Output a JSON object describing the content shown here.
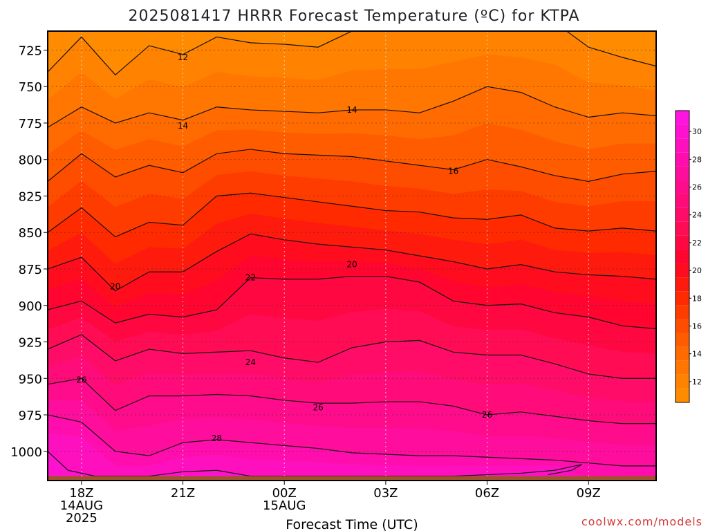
{
  "chart_data": {
    "type": "area",
    "title": "2025081417 HRRR Forecast Temperature (ºC) for KTPA",
    "xlabel": "Forecast Time (UTC)",
    "ylabel": "",
    "credit": "coolwx.com/models",
    "x_ticks": [
      {
        "hour": 1,
        "lines": [
          "18Z",
          "14AUG",
          "2025"
        ]
      },
      {
        "hour": 4,
        "lines": [
          "21Z"
        ]
      },
      {
        "hour": 7,
        "lines": [
          "00Z",
          "15AUG"
        ]
      },
      {
        "hour": 10,
        "lines": [
          "03Z"
        ]
      },
      {
        "hour": 13,
        "lines": [
          "06Z"
        ]
      },
      {
        "hour": 16,
        "lines": [
          "09Z"
        ]
      }
    ],
    "xlim": [
      0,
      18
    ],
    "y_ticks": [
      725,
      750,
      775,
      800,
      825,
      850,
      875,
      900,
      925,
      950,
      975,
      1000
    ],
    "ylim": [
      712,
      1020
    ],
    "ylabel_units": "hPa",
    "y_reversed": true,
    "surface_pressure": 1017,
    "colorbar": {
      "ticks": [
        12,
        14,
        16,
        18,
        20,
        22,
        24,
        26,
        28,
        30
      ],
      "levels": [
        11,
        12,
        13,
        14,
        15,
        16,
        17,
        18,
        19,
        20,
        21,
        22,
        23,
        24,
        25,
        26,
        27,
        28,
        29,
        30,
        31,
        32
      ],
      "colors": [
        "#ff8c00",
        "#ff8200",
        "#ff7700",
        "#ff6b00",
        "#ff5c00",
        "#ff4d00",
        "#ff3c00",
        "#ff2a00",
        "#ff1a0e",
        "#ff0c1e",
        "#ff0530",
        "#ff0842",
        "#ff0c55",
        "#ff0c68",
        "#ff0c7a",
        "#ff0c8c",
        "#ff0d9d",
        "#ff0ead",
        "#ff10be",
        "#ff12cf",
        "#ff14e0"
      ]
    },
    "contour_labels": [
      {
        "level": 12,
        "text": "12",
        "hour": 4.0,
        "p": 730
      },
      {
        "level": 14,
        "text": "14",
        "hour": 4.0,
        "p": 777
      },
      {
        "level": 14,
        "text": "14",
        "hour": 9.0,
        "p": 766
      },
      {
        "level": 16,
        "text": "16",
        "hour": 12.0,
        "p": 808
      },
      {
        "level": 20,
        "text": "20",
        "hour": 2.0,
        "p": 887
      },
      {
        "level": 20,
        "text": "20",
        "hour": 9.0,
        "p": 872
      },
      {
        "level": 22,
        "text": "22",
        "hour": 6.0,
        "p": 881
      },
      {
        "level": 24,
        "text": "24",
        "hour": 6.0,
        "p": 939
      },
      {
        "level": 26,
        "text": "26",
        "hour": 1.0,
        "p": 951
      },
      {
        "level": 26,
        "text": "26",
        "hour": 8.0,
        "p": 970
      },
      {
        "level": 26,
        "text": "26",
        "hour": 13.0,
        "p": 975
      },
      {
        "level": 28,
        "text": "28",
        "hour": 5.0,
        "p": 991
      }
    ],
    "series": [
      {
        "level": 12,
        "hours": [
          0,
          1,
          2,
          3,
          4,
          5,
          6,
          7,
          8,
          9,
          10,
          11,
          12,
          13,
          14,
          15,
          16,
          17,
          18
        ],
        "p": [
          740,
          716,
          742,
          722,
          728,
          716,
          720,
          721,
          723,
          712,
          710,
          708,
          706,
          706,
          706,
          706,
          723,
          730,
          736
        ]
      },
      {
        "level": 14,
        "hours": [
          0,
          1,
          2,
          3,
          4,
          5,
          6,
          7,
          8,
          9,
          10,
          11,
          12,
          13,
          14,
          15,
          16,
          17,
          18
        ],
        "p": [
          778,
          764,
          775,
          768,
          773,
          764,
          766,
          767,
          768,
          766,
          766,
          768,
          760,
          750,
          754,
          764,
          771,
          768,
          770
        ]
      },
      {
        "level": 16,
        "hours": [
          0,
          1,
          2,
          3,
          4,
          5,
          6,
          7,
          8,
          9,
          10,
          11,
          12,
          13,
          14,
          15,
          16,
          17,
          18
        ],
        "p": [
          815,
          796,
          812,
          804,
          809,
          796,
          793,
          796,
          797,
          798,
          801,
          804,
          807,
          800,
          805,
          811,
          815,
          810,
          808
        ]
      },
      {
        "level": 18,
        "hours": [
          0,
          1,
          2,
          3,
          4,
          5,
          6,
          7,
          8,
          9,
          10,
          11,
          12,
          13,
          14,
          15,
          16,
          17,
          18
        ],
        "p": [
          850,
          833,
          853,
          843,
          845,
          825,
          823,
          826,
          829,
          832,
          835,
          836,
          840,
          841,
          838,
          847,
          849,
          847,
          849
        ]
      },
      {
        "level": 20,
        "hours": [
          0,
          1,
          2,
          3,
          4,
          5,
          6,
          7,
          8,
          9,
          10,
          11,
          12,
          13,
          14,
          15,
          16,
          17,
          18
        ],
        "p": [
          875,
          867,
          890,
          877,
          877,
          863,
          851,
          855,
          858,
          860,
          862,
          866,
          870,
          875,
          872,
          877,
          879,
          880,
          882
        ]
      },
      {
        "level": 22,
        "hours": [
          0,
          1,
          2,
          3,
          4,
          5,
          6,
          7,
          8,
          9,
          10,
          11,
          12,
          13,
          14,
          15,
          16,
          17,
          18
        ],
        "p": [
          903,
          897,
          912,
          906,
          908,
          903,
          881,
          882,
          882,
          880,
          880,
          884,
          897,
          900,
          899,
          905,
          908,
          914,
          916
        ]
      },
      {
        "level": 24,
        "hours": [
          0,
          1,
          2,
          3,
          4,
          5,
          6,
          7,
          8,
          9,
          10,
          11,
          12,
          13,
          14,
          15,
          16,
          17,
          18
        ],
        "p": [
          930,
          920,
          938,
          930,
          933,
          932,
          931,
          936,
          939,
          929,
          925,
          924,
          932,
          934,
          934,
          940,
          947,
          950,
          950
        ]
      },
      {
        "level": 26,
        "hours": [
          0,
          1,
          2,
          3,
          4,
          5,
          6,
          7,
          8,
          9,
          10,
          11,
          12,
          13,
          14,
          15,
          16,
          17,
          18
        ],
        "p": [
          954,
          950,
          972,
          962,
          962,
          961,
          962,
          965,
          967,
          967,
          966,
          966,
          969,
          975,
          973,
          976,
          979,
          981,
          981
        ]
      },
      {
        "level": 28,
        "hours": [
          0,
          1,
          2,
          3,
          4,
          5,
          6,
          7,
          8,
          9,
          10,
          11,
          12,
          13,
          14,
          15,
          16,
          17,
          18
        ],
        "p": [
          975,
          980,
          1000,
          1003,
          994,
          992,
          994,
          996,
          998,
          1001,
          1002,
          1003,
          1003,
          1004,
          1005,
          1006,
          1008,
          1010,
          1010
        ]
      },
      {
        "level": 30,
        "hours": [
          0,
          0.6,
          1.4,
          2.2,
          3.0,
          4.0,
          5.0,
          6.0,
          7.0,
          8.0,
          9.0,
          10.0,
          11.0,
          12.0,
          13.0,
          14.0,
          15.0,
          15.8,
          15.5,
          14.8
        ],
        "p": [
          1000,
          1013,
          1017,
          1017,
          1017,
          1014,
          1013,
          1017,
          1017,
          1017,
          1017,
          1017,
          1017,
          1017,
          1016,
          1015,
          1013,
          1009,
          1013,
          1016
        ]
      }
    ]
  }
}
